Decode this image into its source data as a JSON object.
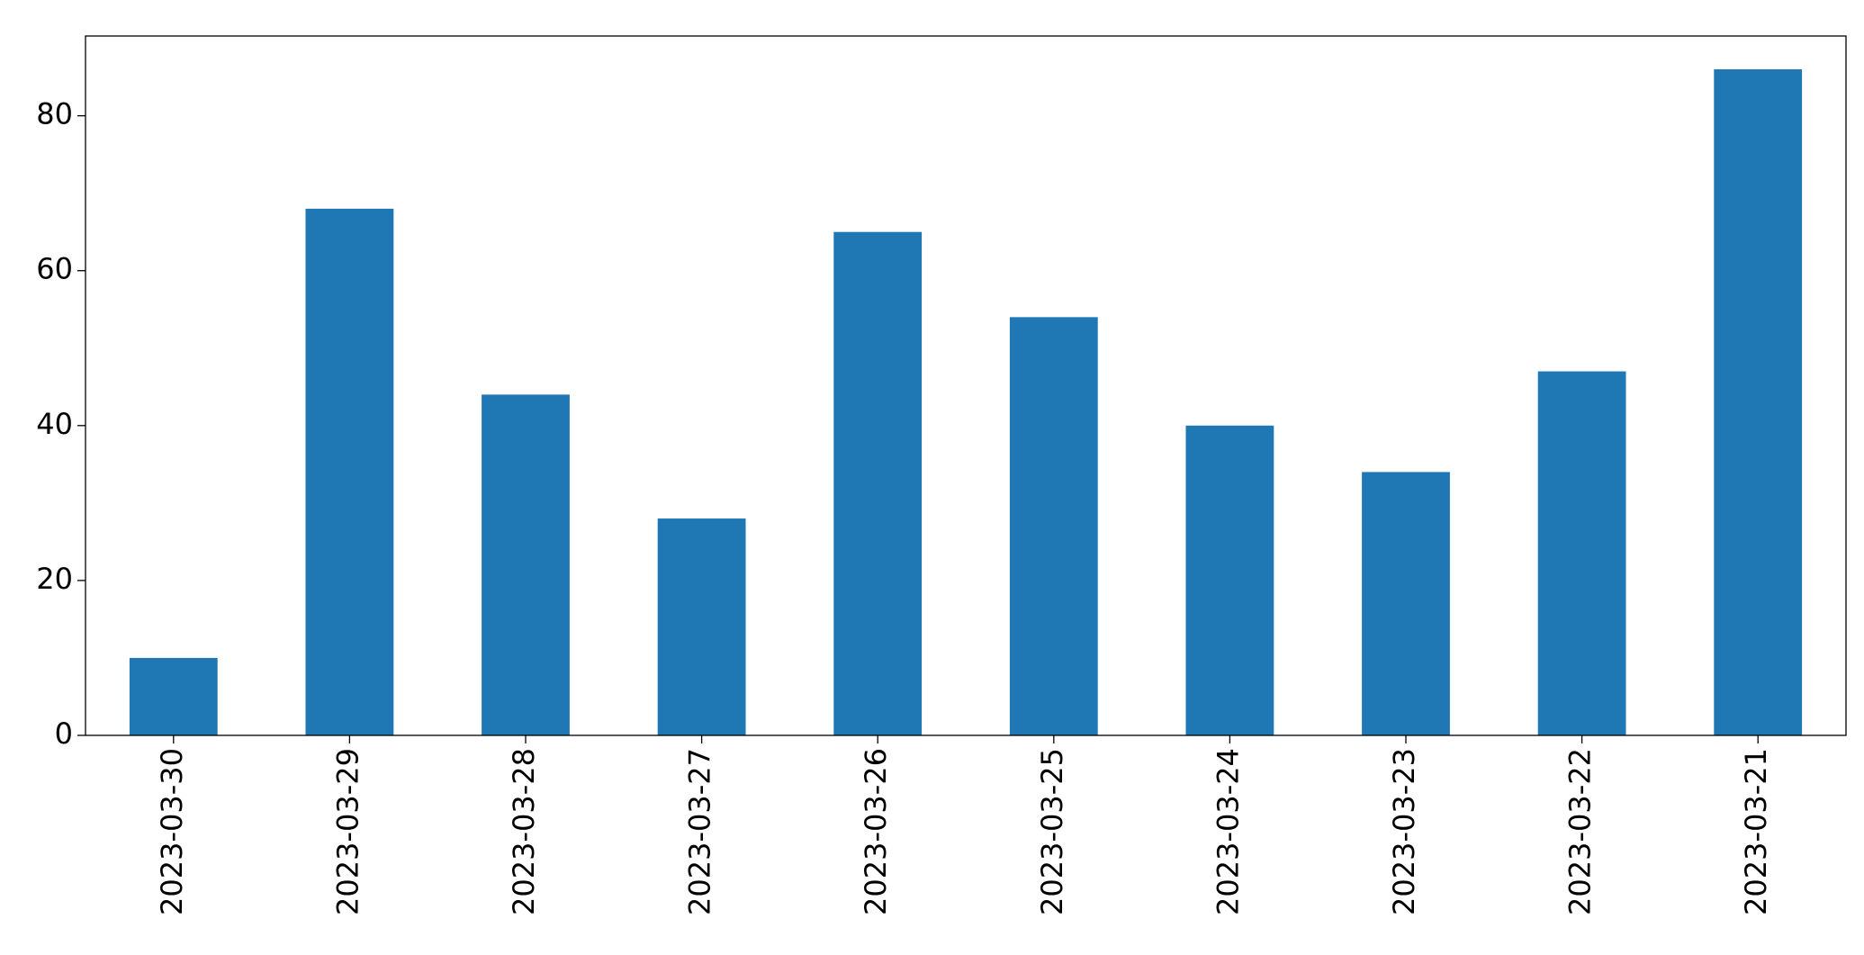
{
  "chart_data": {
    "type": "bar",
    "categories": [
      "2023-03-30",
      "2023-03-29",
      "2023-03-28",
      "2023-03-27",
      "2023-03-26",
      "2023-03-25",
      "2023-03-24",
      "2023-03-23",
      "2023-03-22",
      "2023-03-21"
    ],
    "values": [
      10,
      68,
      44,
      28,
      65,
      54,
      40,
      34,
      47,
      86
    ],
    "color": "#1f77b4",
    "ylim": [
      0,
      90.3
    ],
    "yticks": [
      0,
      20,
      40,
      60,
      80
    ],
    "grid": false
  }
}
